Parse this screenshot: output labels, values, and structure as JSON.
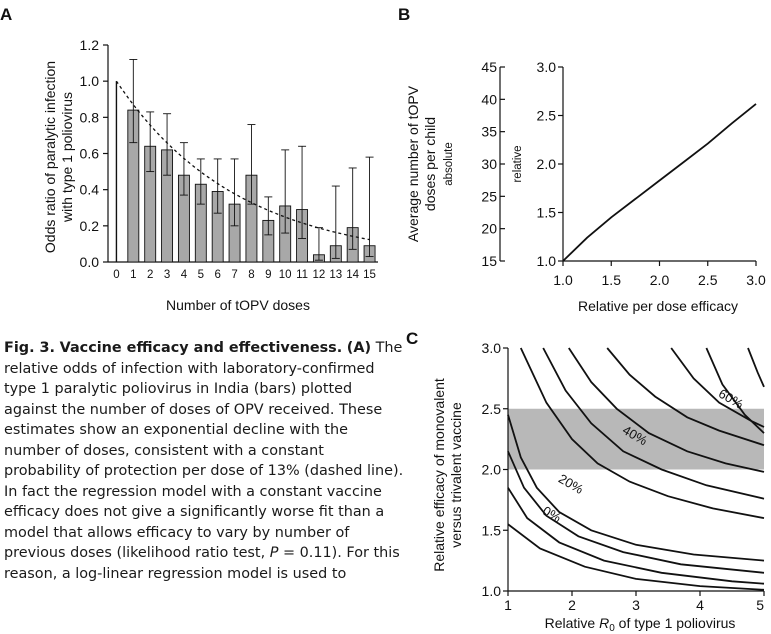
{
  "colors": {
    "bar": "#a8a8a8",
    "shade": "#b8b8b8",
    "ink": "#111111"
  },
  "caption": {
    "fig_label": "Fig. 3.",
    "title": "Vaccine efficacy and effectiveness.",
    "panel": "(A)",
    "body_before_p": "The relative odds of infection with laboratory-confirmed type 1 paralytic poliovirus in India (bars) plotted against the number of doses of OPV received. These estimates show an exponential decline with the number of doses, consistent with a constant probability of protection per dose of 13% (dashed line). In fact the regression model with a constant vaccine efficacy does not give a significantly worse fit than a model that allows efficacy to vary by number of previous doses (likelihood ratio test,",
    "p_symbol": "P",
    "body_after_p": "= 0.11). For this reason, a log-linear regression model is used to"
  },
  "chart_data": [
    {
      "panel": "A",
      "type": "bar",
      "xlabel": "Number of tOPV doses",
      "ylabel_line1": "Odds ratio of paralytic infection",
      "ylabel_line2": "with type 1 poliovirus",
      "ylim": [
        0,
        1.2
      ],
      "yticks": [
        "0.0",
        "0.2",
        "0.4",
        "0.6",
        "0.8",
        "1.0",
        "1.2"
      ],
      "categories": [
        "0",
        "1",
        "2",
        "3",
        "4",
        "5",
        "6",
        "7",
        "8",
        "9",
        "10",
        "11",
        "12",
        "13",
        "14",
        "15"
      ],
      "values": [
        1.0,
        0.84,
        0.64,
        0.62,
        0.48,
        0.43,
        0.39,
        0.32,
        0.48,
        0.23,
        0.31,
        0.29,
        0.04,
        0.09,
        0.19,
        0.09
      ],
      "lower": [
        1.0,
        0.66,
        0.5,
        0.48,
        0.37,
        0.32,
        0.27,
        0.2,
        0.32,
        0.15,
        0.16,
        0.13,
        0.01,
        0.02,
        0.07,
        0.03
      ],
      "upper": [
        1.0,
        1.12,
        0.83,
        0.82,
        0.66,
        0.57,
        0.57,
        0.57,
        0.76,
        0.36,
        0.62,
        0.64,
        0.19,
        0.42,
        0.52,
        0.58
      ],
      "dashed_fit": {
        "start": 1.0,
        "rate_per_dose": 0.13
      }
    },
    {
      "panel": "B",
      "type": "line",
      "xlabel": "Relative per dose efficacy",
      "ylabel_left_line1": "Average number of tOPV",
      "ylabel_left_line2": "doses per child",
      "ylabel_left_sub": "absolute",
      "ylabel_right": "relative",
      "xlim": [
        1.0,
        3.0
      ],
      "ylim": [
        1.0,
        3.0
      ],
      "xticks": [
        "1.0",
        "1.5",
        "2.0",
        "2.5",
        "3.0"
      ],
      "yticks": [
        "1.0",
        "1.5",
        "2.0",
        "2.5",
        "3.0"
      ],
      "abs_ticks": [
        "15",
        "20",
        "25",
        "30",
        "35",
        "40",
        "45"
      ],
      "x": [
        1.0,
        1.25,
        1.5,
        1.75,
        2.0,
        2.25,
        2.5,
        2.75,
        3.0
      ],
      "y": [
        1.0,
        1.24,
        1.45,
        1.64,
        1.83,
        2.02,
        2.21,
        2.42,
        2.62
      ]
    },
    {
      "panel": "C",
      "type": "line",
      "xlabel_pre": "Relative ",
      "xlabel_r": "R",
      "xlabel_sub": "0",
      "xlabel_post": " of type 1 poliovirus",
      "ylabel_line1": "Relative efficacy of monovalent",
      "ylabel_line2": "versus trivalent vaccine",
      "xlim": [
        1,
        5
      ],
      "ylim": [
        1.0,
        3.0
      ],
      "xticks": [
        "1",
        "2",
        "3",
        "4",
        "5"
      ],
      "yticks": [
        "1.0",
        "1.5",
        "2.0",
        "2.5",
        "3.0"
      ],
      "shaded_band": [
        2.0,
        2.5
      ],
      "contour_labels": [
        {
          "text": "0%",
          "x": 1.65,
          "y": 1.6
        },
        {
          "text": "20%",
          "x": 1.95,
          "y": 1.85
        },
        {
          "text": "40%",
          "x": 2.95,
          "y": 2.25
        },
        {
          "text": "60%",
          "x": 4.45,
          "y": 2.55
        }
      ],
      "series": [
        {
          "x": [
            1.2,
            1.6,
            2.0,
            2.4,
            2.9,
            3.5,
            4.2,
            5.0
          ],
          "y": [
            3.0,
            2.55,
            2.25,
            2.05,
            1.9,
            1.78,
            1.68,
            1.6
          ]
        },
        {
          "x": [
            1.55,
            1.9,
            2.3,
            2.8,
            3.4,
            4.1,
            5.0
          ],
          "y": [
            3.0,
            2.65,
            2.38,
            2.15,
            2.0,
            1.87,
            1.76
          ]
        },
        {
          "x": [
            1.95,
            2.3,
            2.7,
            3.2,
            3.8,
            4.4,
            5.0
          ],
          "y": [
            3.0,
            2.72,
            2.5,
            2.3,
            2.15,
            2.05,
            1.98
          ]
        },
        {
          "x": [
            2.55,
            2.9,
            3.3,
            3.8,
            4.3,
            5.0
          ],
          "y": [
            3.0,
            2.78,
            2.6,
            2.43,
            2.32,
            2.2
          ]
        },
        {
          "x": [
            1.0,
            1.2,
            1.45,
            1.8,
            2.3,
            3.0,
            3.9,
            5.0
          ],
          "y": [
            2.45,
            2.1,
            1.85,
            1.65,
            1.5,
            1.38,
            1.3,
            1.25
          ]
        },
        {
          "x": [
            1.0,
            1.25,
            1.6,
            2.1,
            2.8,
            3.7,
            5.0
          ],
          "y": [
            2.15,
            1.85,
            1.62,
            1.45,
            1.32,
            1.22,
            1.15
          ]
        },
        {
          "x": [
            1.0,
            1.3,
            1.8,
            2.5,
            3.4,
            4.5,
            5.0
          ],
          "y": [
            1.85,
            1.6,
            1.4,
            1.25,
            1.15,
            1.08,
            1.06
          ]
        },
        {
          "x": [
            1.0,
            1.5,
            2.2,
            3.0,
            4.0,
            5.0
          ],
          "y": [
            1.55,
            1.35,
            1.2,
            1.1,
            1.04,
            1.01
          ]
        },
        {
          "x": [
            4.1,
            4.35,
            4.7,
            5.0
          ],
          "y": [
            3.0,
            2.7,
            2.45,
            2.3
          ]
        },
        {
          "x": [
            4.75,
            4.9,
            5.0
          ],
          "y": [
            3.0,
            2.8,
            2.68
          ]
        },
        {
          "x": [
            3.55,
            3.9,
            4.3,
            4.8,
            5.0
          ],
          "y": [
            3.0,
            2.75,
            2.55,
            2.4,
            2.35
          ]
        }
      ]
    }
  ]
}
